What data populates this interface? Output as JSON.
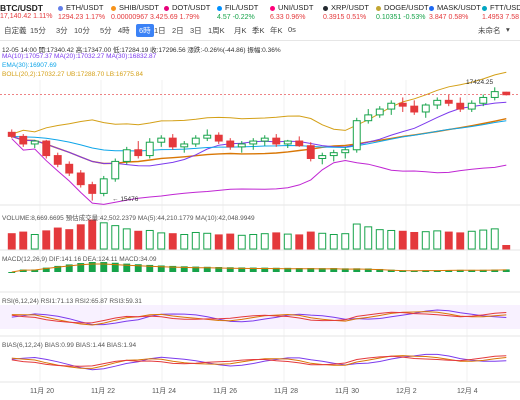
{
  "pair": {
    "symbol": "BTC/USDT",
    "price": "17,140.42",
    "change": "1.11%"
  },
  "tickers": [
    {
      "symbol": "ETH/USDT",
      "price": "1294.23",
      "change": "1.17%",
      "dot": "#627eea"
    },
    {
      "symbol": "SHIB/USDT",
      "price": "0.00000967",
      "change": "3.42",
      "dot": "#f7931a"
    },
    {
      "symbol": "DOT/USDT",
      "price": "5.69",
      "change": "1.79%",
      "dot": "#e6007a"
    },
    {
      "symbol": "FIL/USDT",
      "price": "4.57",
      "change": "-0.22%",
      "dot": "#0090ff"
    },
    {
      "symbol": "UNI/USDT",
      "price": "6.33",
      "change": "0.96%",
      "dot": "#ff007a"
    },
    {
      "symbol": "XRP/USDT",
      "price": "0.3915",
      "change": "0.51%",
      "dot": "#23292f"
    },
    {
      "symbol": "DOGE/USDT",
      "price": "0.10351",
      "change": "-0.53%",
      "dot": "#c2a633"
    },
    {
      "symbol": "MASK/USDT",
      "price": "3.847",
      "change": "0.58%",
      "dot": "#1c68f3"
    },
    {
      "symbol": "FTT/USDT",
      "price": "1.4953",
      "change": "7.58",
      "dot": "#02a6c2"
    }
  ],
  "toolbar": {
    "items": [
      "自定義",
      "15分",
      "3分",
      "10分",
      "5分",
      "4時",
      "6時",
      "1日",
      "2日",
      "3日",
      "1周K",
      "月K",
      "季K",
      "年K",
      "0s"
    ],
    "active": "6時",
    "right": "未命名"
  },
  "colors": {
    "up": "#16a34a",
    "down": "#e4393c",
    "accent": "#3b82f6"
  },
  "main": {
    "ohlc": "12-05 14:00  開:17340.42  高:17347.00  低:17284.19  收:17296.56  漲跌:-0.26%(-44.86)  振幅:0.36%",
    "ma_line": "MA(10):17057.37  MA(20):17032.27  MA(30):16832.87",
    "ema_line": "EMA(30):16907.69",
    "boll_line": "BOLL(20,2):17032.27  UB:17288.70  LB:16775.84",
    "high_label": "17424.25",
    "low_label": "15476",
    "last_price": "17296.56"
  },
  "volume": {
    "label": "VOLUME:8,669.6695  預估成交量:42,502.2379  MA(5):44,210.1779  MA(10):42,048.9949"
  },
  "macd": {
    "label": "MACD(12,26,9)  DIF:141.16  DEA:124.11  MACD:34.09"
  },
  "rsi": {
    "label": "RSI(6,12,24)  RSI1:71.13  RSI2:65.87  RSI3:59.31"
  },
  "bias": {
    "label": "BIAS(6,12,24)  BIAS:0.99  BIAS:1.44  BIAS:1.94"
  },
  "x_axis": [
    "11月 20",
    "11月 22",
    "11月 24",
    "11月 26",
    "11月 28",
    "11月 30",
    "12月 2",
    "12月 4"
  ],
  "chart_data": {
    "type": "candlestick",
    "title": "",
    "xlabel": "",
    "ylabel": "",
    "ylim": [
      15400,
      17550
    ],
    "categories": [
      "11月 20",
      "11月 22",
      "11月 24",
      "11月 26",
      "11月 28",
      "11月 30",
      "12月 2",
      "12月 4"
    ],
    "ohlc": [
      [
        16650,
        16700,
        16550,
        16580
      ],
      [
        16580,
        16620,
        16400,
        16450
      ],
      [
        16450,
        16520,
        16380,
        16500
      ],
      [
        16500,
        16520,
        16200,
        16250
      ],
      [
        16250,
        16300,
        16050,
        16100
      ],
      [
        16100,
        16150,
        15900,
        15950
      ],
      [
        15950,
        16000,
        15700,
        15750
      ],
      [
        15750,
        15800,
        15476,
        15600
      ],
      [
        15600,
        15900,
        15550,
        15850
      ],
      [
        15850,
        16200,
        15800,
        16150
      ],
      [
        16150,
        16400,
        16100,
        16350
      ],
      [
        16350,
        16500,
        16200,
        16250
      ],
      [
        16250,
        16550,
        16200,
        16480
      ],
      [
        16480,
        16600,
        16400,
        16550
      ],
      [
        16550,
        16620,
        16350,
        16400
      ],
      [
        16400,
        16500,
        16300,
        16450
      ],
      [
        16450,
        16600,
        16400,
        16550
      ],
      [
        16550,
        16700,
        16500,
        16600
      ],
      [
        16600,
        16650,
        16450,
        16500
      ],
      [
        16500,
        16550,
        16350,
        16400
      ],
      [
        16400,
        16500,
        16300,
        16450
      ],
      [
        16450,
        16550,
        16350,
        16500
      ],
      [
        16500,
        16600,
        16420,
        16550
      ],
      [
        16550,
        16620,
        16400,
        16450
      ],
      [
        16450,
        16520,
        16380,
        16500
      ],
      [
        16500,
        16580,
        16400,
        16420
      ],
      [
        16420,
        16480,
        16150,
        16200
      ],
      [
        16200,
        16300,
        16100,
        16250
      ],
      [
        16250,
        16350,
        16150,
        16300
      ],
      [
        16300,
        16400,
        16200,
        16350
      ],
      [
        16350,
        16900,
        16300,
        16850
      ],
      [
        16850,
        17050,
        16800,
        16950
      ],
      [
        16950,
        17100,
        16900,
        17050
      ],
      [
        17050,
        17200,
        16950,
        17150
      ],
      [
        17150,
        17250,
        17000,
        17100
      ],
      [
        17100,
        17200,
        16950,
        17000
      ],
      [
        17000,
        17150,
        16900,
        17120
      ],
      [
        17120,
        17250,
        17050,
        17200
      ],
      [
        17200,
        17300,
        17100,
        17150
      ],
      [
        17150,
        17250,
        17000,
        17050
      ],
      [
        17050,
        17200,
        17000,
        17150
      ],
      [
        17150,
        17300,
        17100,
        17250
      ],
      [
        17250,
        17424.25,
        17200,
        17350
      ],
      [
        17340.42,
        17347,
        17284.19,
        17296.56
      ]
    ],
    "volume": [
      38000,
      42000,
      36000,
      45000,
      52000,
      48000,
      60000,
      72000,
      65000,
      58000,
      50000,
      44000,
      46000,
      40000,
      38000,
      36000,
      41000,
      39000,
      35000,
      37000,
      34000,
      36000,
      38000,
      40000,
      37000,
      35000,
      42000,
      39000,
      36000,
      38000,
      62000,
      55000,
      48000,
      46000,
      44000,
      41000,
      43000,
      45000,
      42000,
      40000,
      44000,
      47000,
      50000,
      8670
    ],
    "series": [
      {
        "name": "MA(10)",
        "color": "#7c3aed"
      },
      {
        "name": "MA(20)",
        "color": "#d97706"
      },
      {
        "name": "MA(30)",
        "color": "#c026d3"
      },
      {
        "name": "EMA(30)",
        "color": "#0ea5e9"
      },
      {
        "name": "BOLL",
        "color": "#d4a017"
      }
    ]
  }
}
